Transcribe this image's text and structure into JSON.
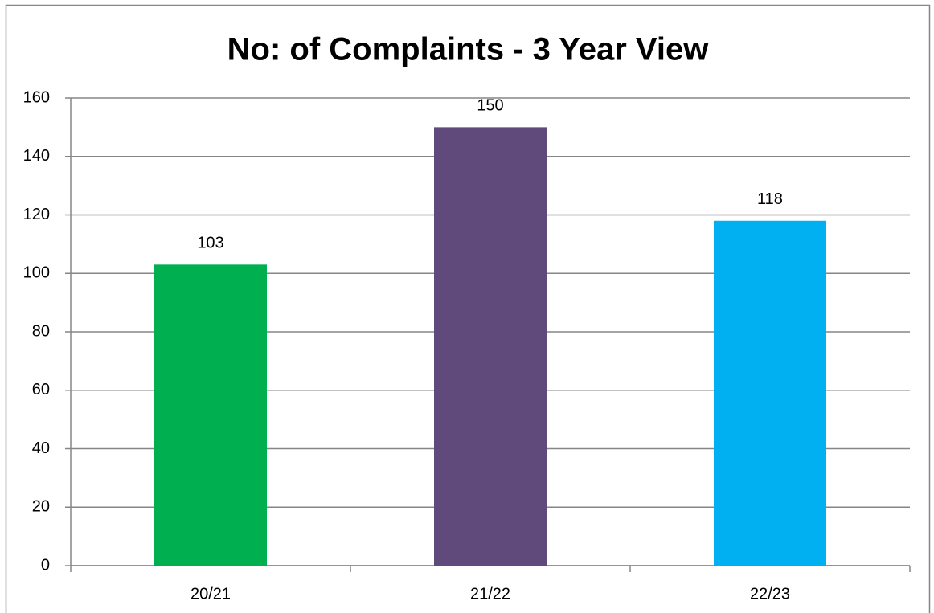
{
  "chart_data": {
    "type": "bar",
    "title": "No: of Complaints - 3 Year View",
    "categories": [
      "20/21",
      "21/22",
      "22/23"
    ],
    "values": [
      103,
      150,
      118
    ],
    "colors": [
      "#00b050",
      "#604a7b",
      "#00b0f0"
    ],
    "ylim": [
      0,
      160
    ],
    "yticks": [
      0,
      20,
      40,
      60,
      80,
      100,
      120,
      140,
      160
    ],
    "grid": true
  }
}
